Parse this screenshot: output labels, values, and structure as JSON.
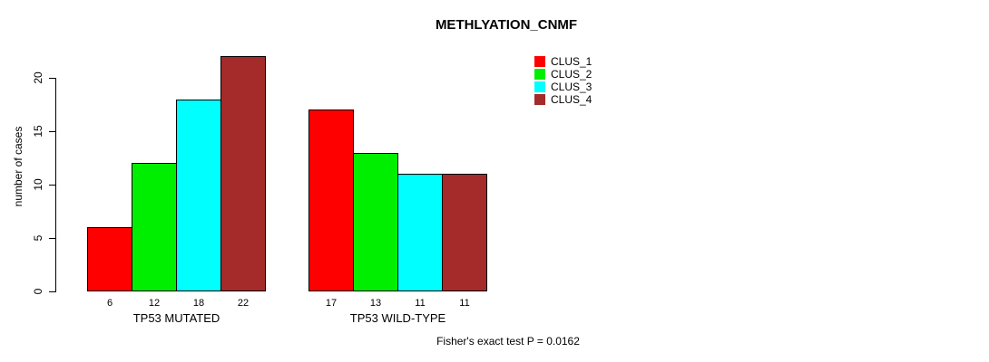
{
  "title": "METHLYATION_CNMF",
  "footer": "Fisher's exact test P = 0.0162",
  "chart_data": {
    "type": "bar",
    "title": "METHLYATION_CNMF",
    "xlabel": "",
    "ylabel": "number of cases",
    "ylim": [
      0,
      22
    ],
    "yticks": [
      0,
      5,
      10,
      15,
      20
    ],
    "grid": false,
    "legend_position": "top-right",
    "bar_value_labels_shown": true,
    "categories": [
      "TP53 MUTATED",
      "TP53 WILD-TYPE"
    ],
    "series": [
      {
        "name": "CLUS_1",
        "color": "#ff0000",
        "values": [
          6,
          17
        ]
      },
      {
        "name": "CLUS_2",
        "color": "#00ee00",
        "values": [
          12,
          13
        ]
      },
      {
        "name": "CLUS_3",
        "color": "#00ffff",
        "values": [
          18,
          11
        ]
      },
      {
        "name": "CLUS_4",
        "color": "#a52a2a",
        "values": [
          22,
          11
        ]
      }
    ],
    "annotation": "Fisher's exact test P = 0.0162"
  }
}
